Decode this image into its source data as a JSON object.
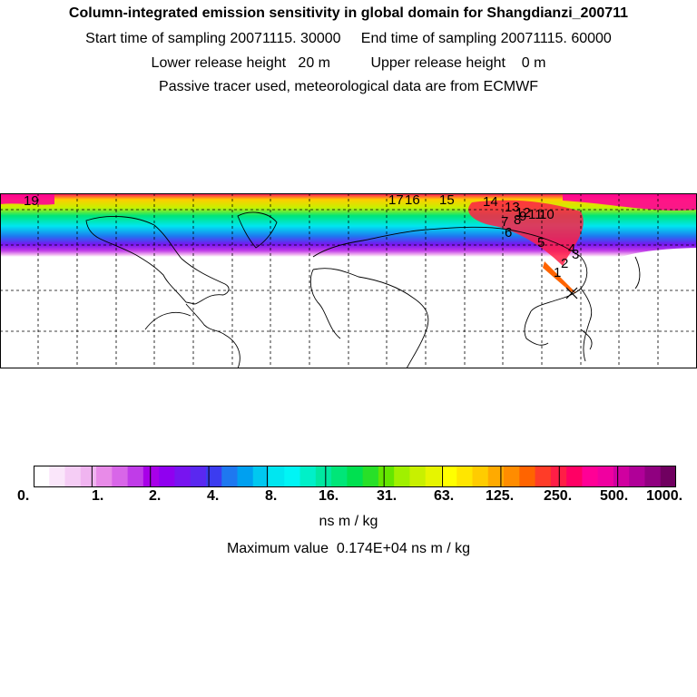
{
  "header": {
    "title": "Column-integrated emission sensitivity in global domain for Shangdianzi_200711",
    "sampling_line": "Start time of sampling 20071115. 30000     End time of sampling 20071115. 60000",
    "release_line": "Lower release height   20 m          Upper release height    0 m",
    "tracer_line": "Passive tracer used, meteorological data are from ECMWF"
  },
  "map": {
    "release_site_marker": "x",
    "trajectory_labels": [
      "19",
      "17",
      "16",
      "15",
      "14",
      "13",
      "12",
      "11",
      "10",
      "9",
      "8",
      "7",
      "6",
      "5",
      "4",
      "3",
      "2",
      "1"
    ]
  },
  "colorbar": {
    "colors": [
      "#ffffff",
      "#fae6fa",
      "#f5cdf5",
      "#f0b4f0",
      "#e88be8",
      "#d866e8",
      "#c03ce8",
      "#a800e8",
      "#9000f0",
      "#7814f0",
      "#5a28f0",
      "#3c3cf0",
      "#1e78f0",
      "#00a0f0",
      "#00c8f0",
      "#00e6f0",
      "#00f5f5",
      "#00f0c8",
      "#00e8a0",
      "#00e678",
      "#00e050",
      "#28e028",
      "#64e600",
      "#a0f000",
      "#c8f000",
      "#e6f500",
      "#ffff00",
      "#ffe600",
      "#ffcc00",
      "#ffaa00",
      "#ff8c00",
      "#ff6400",
      "#ff3c28",
      "#ff1e46",
      "#ff0064",
      "#ff0096",
      "#f000a0",
      "#d000a0",
      "#b00098",
      "#900080",
      "#700060"
    ],
    "tick_labels": [
      "0.",
      "1.",
      "2.",
      "4.",
      "8.",
      "16.",
      "31.",
      "63.",
      "125.",
      "250.",
      "500.",
      "1000."
    ],
    "unit": "ns m / kg"
  },
  "footer": {
    "max_value": "Maximum value  0.174E+04 ns m / kg"
  }
}
